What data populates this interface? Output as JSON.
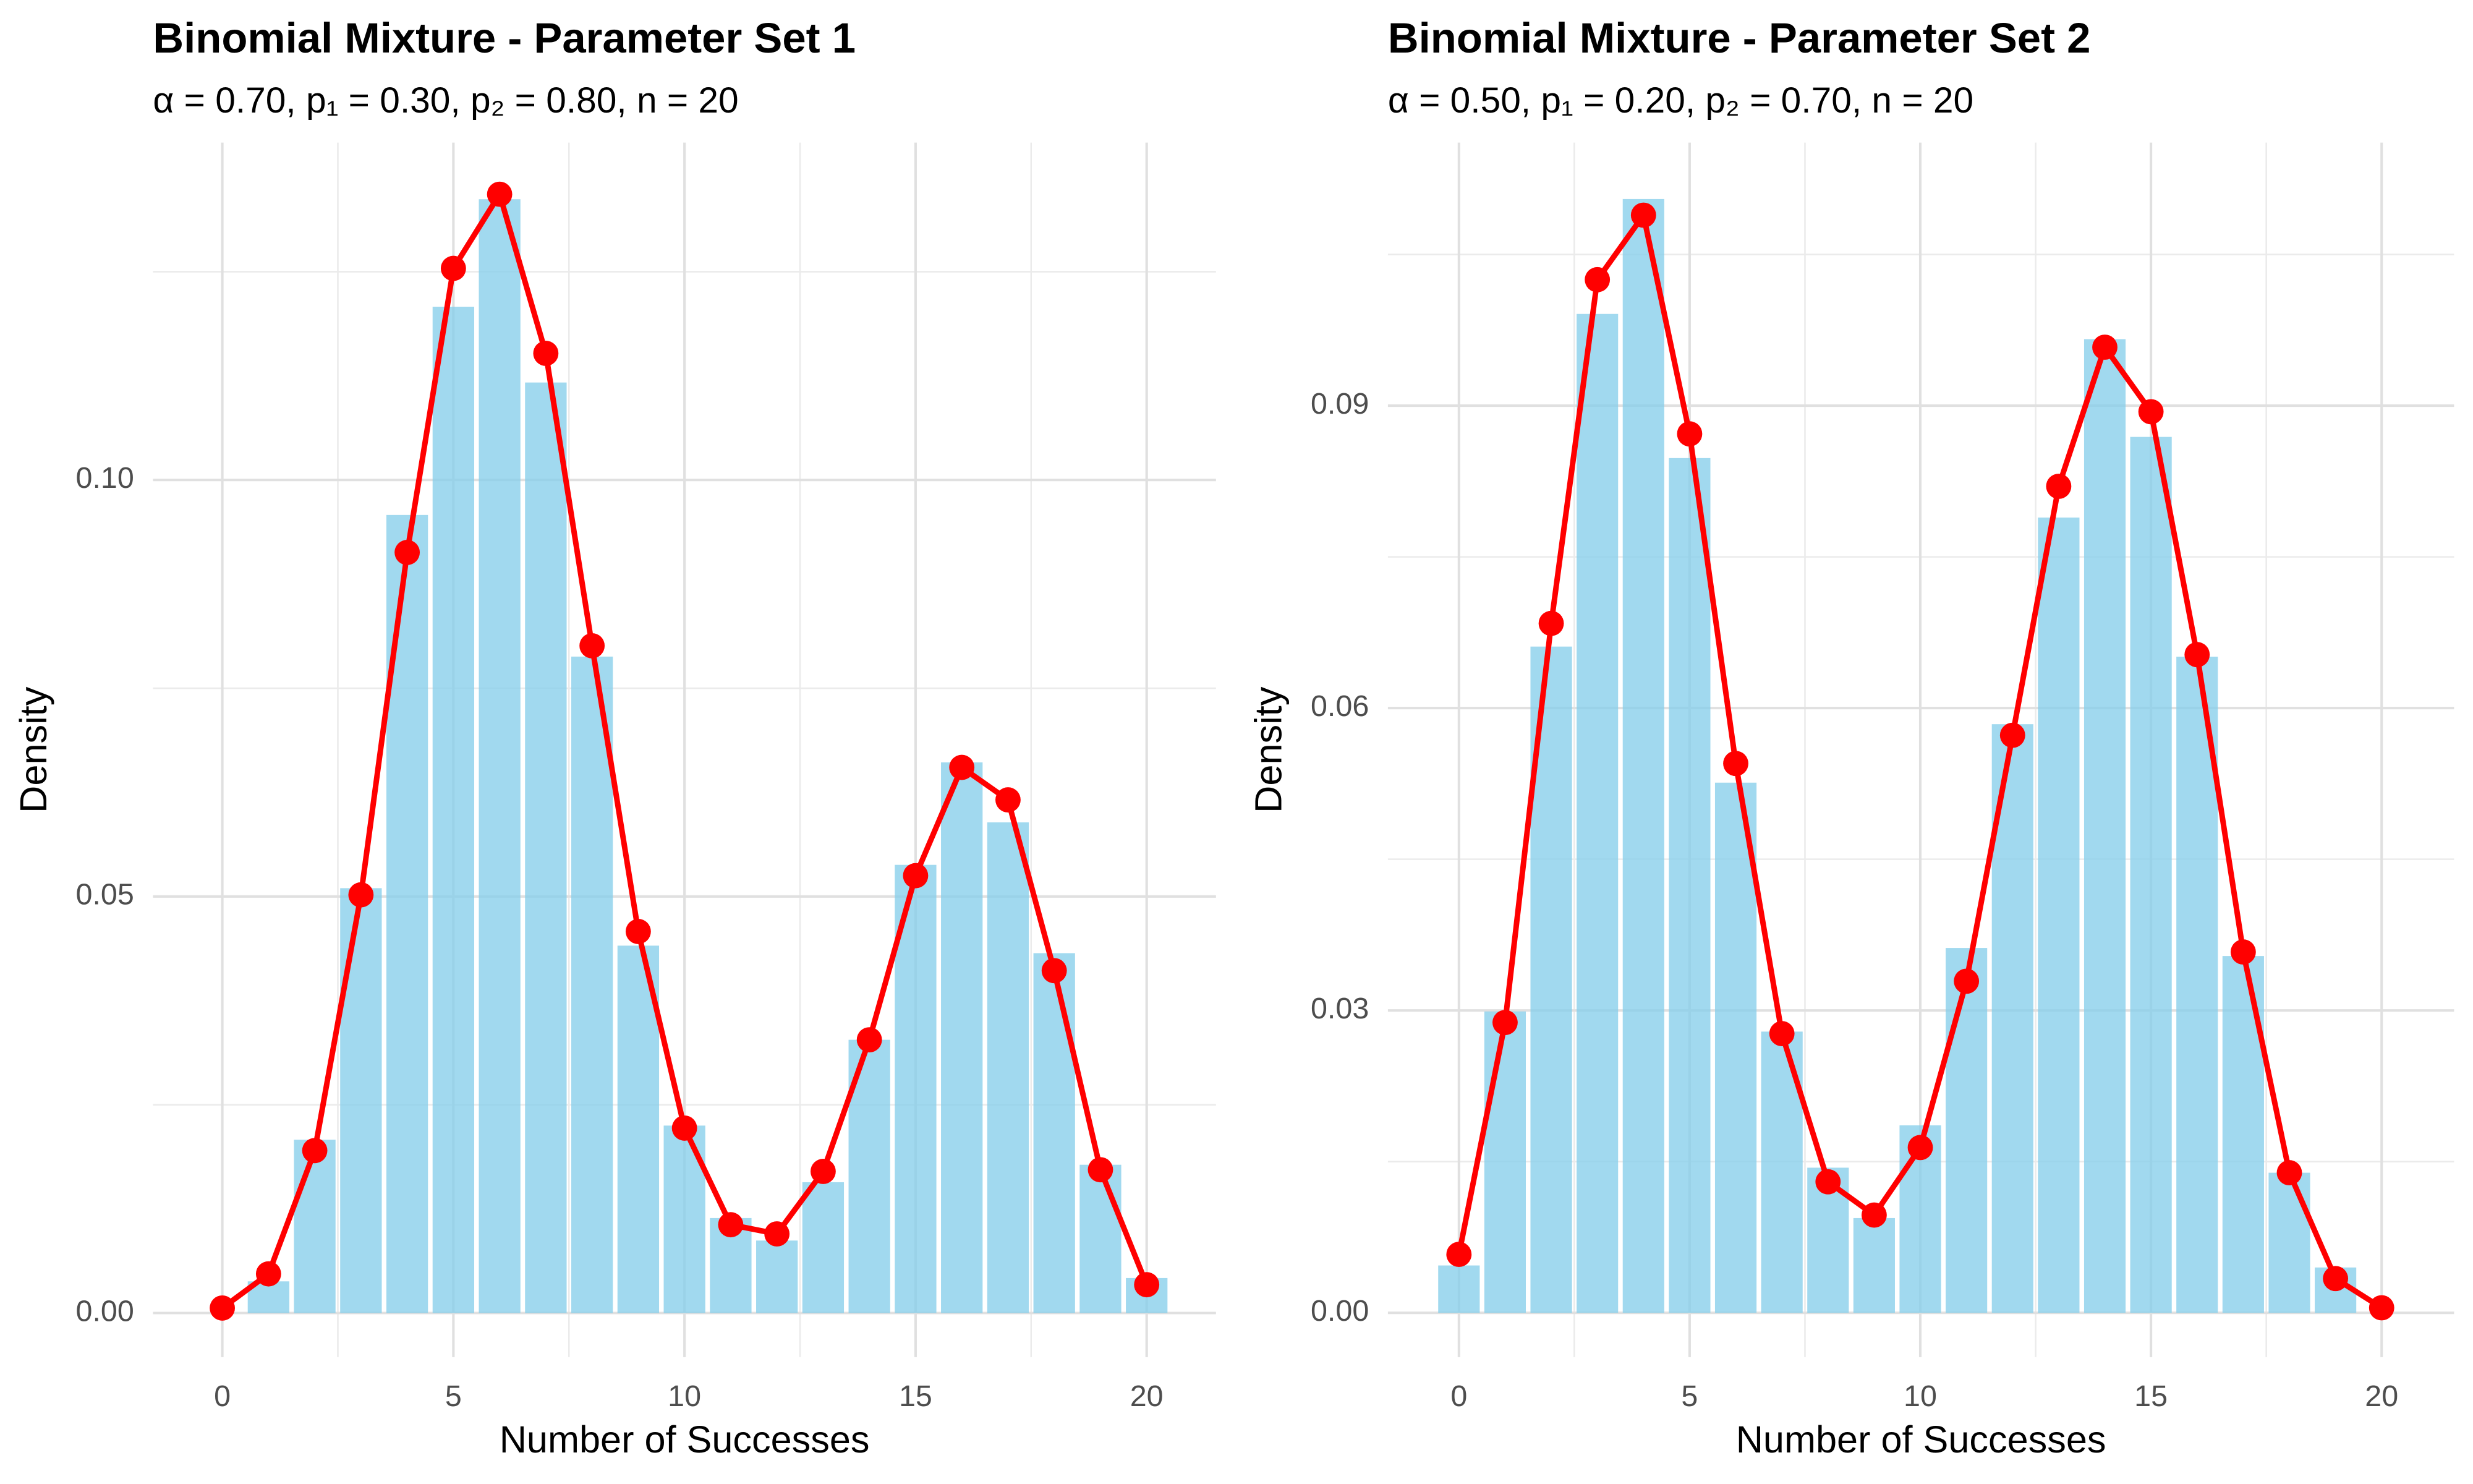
{
  "chart_data": [
    {
      "type": "combo",
      "title": "Binomial Mixture - Parameter Set 1",
      "subtitle": "α = 0.70, p₁ = 0.30, p₂ = 0.80, n = 20",
      "xlabel": "Number of Successes",
      "ylabel": "Density",
      "xlim": [
        -1.5,
        21.5
      ],
      "ylim": [
        -0.0053,
        0.1405
      ],
      "xticks": [
        0,
        5,
        10,
        15,
        20
      ],
      "yticks": [
        {
          "value": 0,
          "label": "0.00"
        },
        0.05,
        {
          "value": 0.1,
          "label": "0.10"
        }
      ],
      "grid": true,
      "series": [
        {
          "type": "bar",
          "color": "#87ceeb",
          "x": [
            1,
            2,
            3,
            4,
            5,
            6,
            7,
            8,
            9,
            10,
            11,
            12,
            13,
            14,
            15,
            16,
            17,
            18,
            19,
            20
          ],
          "values": [
            0.0038,
            0.0208,
            0.051,
            0.0958,
            0.1208,
            0.1337,
            0.1117,
            0.0788,
            0.0441,
            0.0225,
            0.0114,
            0.0087,
            0.0157,
            0.0328,
            0.0538,
            0.0661,
            0.0589,
            0.0432,
            0.0178,
            0.0042
          ]
        },
        {
          "type": "line",
          "color": "#ff0000",
          "x": [
            0,
            1,
            2,
            3,
            4,
            5,
            6,
            7,
            8,
            9,
            10,
            11,
            12,
            13,
            14,
            15,
            16,
            17,
            18,
            19,
            20
          ],
          "values": [
            0.0006,
            0.0047,
            0.0195,
            0.0502,
            0.0913,
            0.1254,
            0.1343,
            0.1152,
            0.0801,
            0.0458,
            0.0222,
            0.0106,
            0.0095,
            0.017,
            0.0328,
            0.0525,
            0.0655,
            0.0616,
            0.0411,
            0.0172,
            0.0034
          ]
        }
      ]
    },
    {
      "type": "combo",
      "title": "Binomial Mixture - Parameter Set 2",
      "subtitle": "α = 0.50, p₁ = 0.20, p₂ = 0.70, n = 20",
      "xlabel": "Number of Successes",
      "ylabel": "Density",
      "xlim": [
        -1.54,
        21.57
      ],
      "ylim": [
        -0.0044,
        0.1161
      ],
      "xticks": [
        0,
        5,
        10,
        15,
        20
      ],
      "yticks": [
        {
          "value": 0,
          "label": "0.00"
        },
        0.03,
        0.06,
        0.09
      ],
      "grid": true,
      "series": [
        {
          "type": "bar",
          "color": "#87ceeb",
          "x": [
            0,
            1,
            2,
            3,
            4,
            5,
            6,
            7,
            8,
            9,
            10,
            11,
            12,
            13,
            14,
            15,
            16,
            17,
            18,
            19
          ],
          "values": [
            0.0047,
            0.0299,
            0.0661,
            0.0991,
            0.1105,
            0.0848,
            0.0526,
            0.0279,
            0.0144,
            0.0094,
            0.0186,
            0.0362,
            0.0584,
            0.0789,
            0.0966,
            0.0869,
            0.0651,
            0.0354,
            0.0139,
            0.0045
          ]
        },
        {
          "type": "line",
          "color": "#ff0000",
          "x": [
            0,
            1,
            2,
            3,
            4,
            5,
            6,
            7,
            8,
            9,
            10,
            11,
            12,
            13,
            14,
            15,
            16,
            17,
            18,
            19,
            20
          ],
          "values": [
            0.0058,
            0.0288,
            0.0684,
            0.1025,
            0.1089,
            0.0872,
            0.0545,
            0.0277,
            0.013,
            0.0097,
            0.0164,
            0.0329,
            0.0573,
            0.082,
            0.0958,
            0.0894,
            0.0653,
            0.0358,
            0.0139,
            0.0034,
            0.0005
          ]
        }
      ]
    }
  ]
}
